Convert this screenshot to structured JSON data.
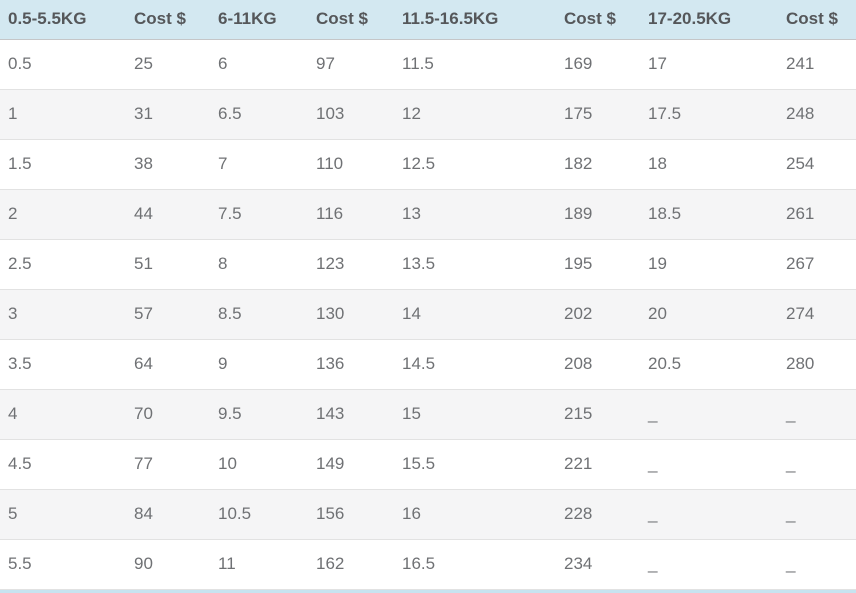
{
  "colors": {
    "header_bg": "#d3e8f1",
    "header_text": "#55575a",
    "cell_text": "#6f7174",
    "alt_row_bg": "#f5f5f6",
    "row_border": "#e2e2e2",
    "header_border": "#c5c6c8",
    "strip_bg": "#c7e3f0",
    "page_bg": "#ffffff"
  },
  "table": {
    "description": "Weight-to-cost rate table, four weight-range column pairs",
    "columns": [
      {
        "label": "0.5-5.5KG"
      },
      {
        "label": "Cost $"
      },
      {
        "label": "6-11KG"
      },
      {
        "label": "Cost $"
      },
      {
        "label": "11.5-16.5KG"
      },
      {
        "label": "Cost $"
      },
      {
        "label": "17-20.5KG"
      },
      {
        "label": "Cost $"
      }
    ],
    "rows": [
      [
        "0.5",
        "25",
        "6",
        "97",
        "11.5",
        "169",
        "17",
        "241"
      ],
      [
        "1",
        "31",
        "6.5",
        "103",
        "12",
        "175",
        "17.5",
        "248"
      ],
      [
        "1.5",
        "38",
        "7",
        "110",
        "12.5",
        "182",
        "18",
        "254"
      ],
      [
        "2",
        "44",
        "7.5",
        "116",
        "13",
        "189",
        "18.5",
        "261"
      ],
      [
        "2.5",
        "51",
        "8",
        "123",
        "13.5",
        "195",
        "19",
        "267"
      ],
      [
        "3",
        "57",
        "8.5",
        "130",
        "14",
        "202",
        "20",
        "274"
      ],
      [
        "3.5",
        "64",
        "9",
        "136",
        "14.5",
        "208",
        "20.5",
        "280"
      ],
      [
        "4",
        "70",
        "9.5",
        "143",
        "15",
        "215",
        "_",
        "_"
      ],
      [
        "4.5",
        "77",
        "10",
        "149",
        "15.5",
        "221",
        "_",
        "_"
      ],
      [
        "5",
        "84",
        "10.5",
        "156",
        "16",
        "228",
        "_",
        "_"
      ],
      [
        "5.5",
        "90",
        "11",
        "162",
        "16.5",
        "234",
        "_",
        "_"
      ]
    ]
  }
}
